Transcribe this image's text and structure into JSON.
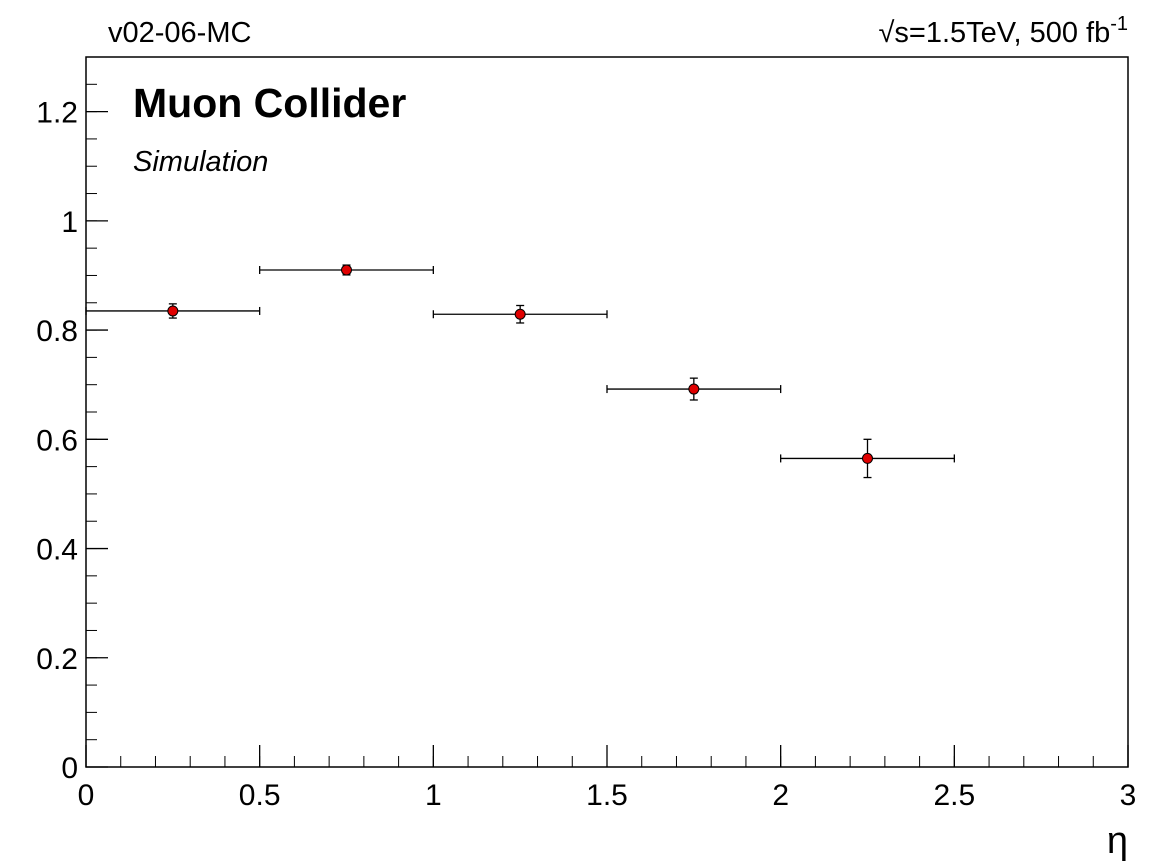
{
  "chart_data": {
    "type": "errorbar",
    "header_left": "v02-06-MC",
    "header_right": "√s=1.5TeV, 500 fb",
    "header_right_sup": "-1",
    "title": "Muon Collider",
    "subtitle": "Simulation",
    "xlabel": "η",
    "xlim": [
      0,
      3
    ],
    "ylim": [
      0,
      1.3
    ],
    "xticks": [
      0,
      0.5,
      1,
      1.5,
      2,
      2.5,
      3
    ],
    "yticks": [
      0,
      0.2,
      0.4,
      0.6,
      0.8,
      1,
      1.2
    ],
    "series": [
      {
        "color": "#e00000",
        "x": [
          0.25,
          0.75,
          1.25,
          1.75,
          2.25
        ],
        "xerr": [
          0.25,
          0.25,
          0.25,
          0.25,
          0.25
        ],
        "values": [
          0.835,
          0.91,
          0.829,
          0.692,
          0.565
        ],
        "yerr": [
          0.013,
          0.009,
          0.016,
          0.02,
          0.035
        ]
      }
    ]
  }
}
